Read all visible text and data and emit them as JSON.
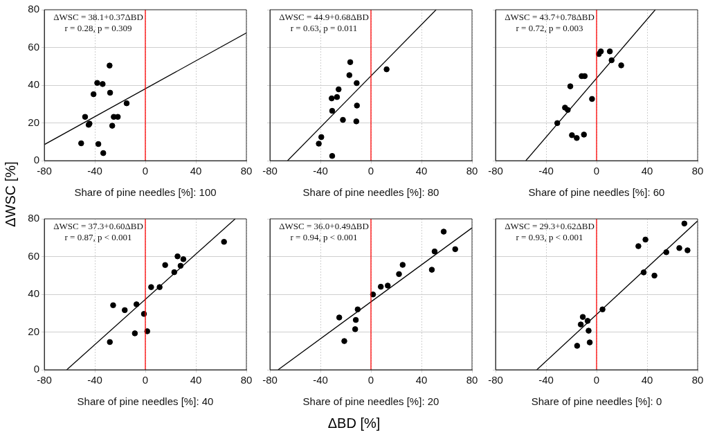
{
  "chart_data": [
    {
      "type": "scatter",
      "ylabel": "ΔWSC [%]",
      "xlabel": "Share of pine needles [%]: 100",
      "annotations": [
        "ΔWSC = 38.1+0.37ΔBD",
        "r = 0.28, p = 0.309"
      ],
      "xlim": [
        -80,
        80
      ],
      "ylim": [
        0,
        80
      ],
      "xticks": [
        -80,
        -40,
        0,
        40,
        80
      ],
      "yticks": [
        0,
        20,
        40,
        60,
        80
      ],
      "grid": true,
      "legend": false,
      "marker": "circle",
      "ref_lines": [
        {
          "axis": "x",
          "value": 0,
          "color": "#ff0000"
        }
      ],
      "series": [
        {
          "type": "scatter",
          "color": "#000000",
          "x": [
            -50.8,
            -37.2,
            -33.3,
            -44.9,
            -44.2,
            -47.7,
            -26.2,
            -25.0,
            -21.8,
            -14.8,
            -41.0,
            -27.9,
            -38.1,
            -33.8,
            -28.3
          ],
          "values": [
            9.2,
            8.8,
            4.0,
            19.0,
            19.6,
            23.2,
            18.5,
            23.2,
            23.2,
            30.4,
            35.2,
            36.0,
            41.2,
            40.6,
            50.4
          ]
        },
        {
          "type": "line",
          "marker": "none",
          "color": "#000000",
          "x": [
            -80,
            80
          ],
          "values": [
            8.5,
            67.7
          ]
        }
      ]
    },
    {
      "type": "scatter",
      "xlabel": "Share of pine needles [%]: 80",
      "annotations": [
        "ΔWSC = 44.9+0.68ΔBD",
        "r = 0.63, p = 0.011"
      ],
      "xlim": [
        -80,
        80
      ],
      "ylim": [
        0,
        80
      ],
      "xticks": [
        -80,
        -40,
        0,
        40,
        80
      ],
      "yticks": [
        0,
        20,
        40,
        60,
        80
      ],
      "tick_labels": "x",
      "grid": true,
      "legend": false,
      "marker": "circle",
      "ref_lines": [
        {
          "axis": "x",
          "value": 0,
          "color": "#ff0000"
        }
      ],
      "series": [
        {
          "type": "scatter",
          "color": "#000000",
          "x": [
            -30.7,
            -41.3,
            -39.3,
            -30.7,
            -31.1,
            -26.9,
            -25.6,
            -22.2,
            -11.6,
            -11.1,
            -11.3,
            -17.1,
            -16.4,
            12.4
          ],
          "values": [
            2.5,
            9.0,
            12.5,
            26.4,
            33.0,
            33.7,
            37.8,
            21.6,
            20.8,
            29.2,
            41.1,
            45.3,
            52.2,
            48.4
          ]
        },
        {
          "type": "line",
          "marker": "none",
          "color": "#000000",
          "x": [
            -66.0,
            51.6
          ],
          "values": [
            0,
            80
          ]
        }
      ]
    },
    {
      "type": "scatter",
      "xlabel": "Share of pine needles [%]: 60",
      "annotations": [
        "ΔWSC = 43.7+0.78ΔBD",
        "r = 0.72, p = 0.003"
      ],
      "xlim": [
        -80,
        80
      ],
      "ylim": [
        0,
        80
      ],
      "xticks": [
        -80,
        -40,
        0,
        40,
        80
      ],
      "yticks": [
        0,
        20,
        40,
        60,
        80
      ],
      "tick_labels": "x",
      "grid": true,
      "legend": false,
      "marker": "circle",
      "ref_lines": [
        {
          "axis": "x",
          "value": 0,
          "color": "#ff0000"
        }
      ],
      "series": [
        {
          "type": "scatter",
          "color": "#000000",
          "x": [
            -31.1,
            -19.5,
            -15.7,
            -10.0,
            -25.0,
            -22.8,
            -20.8,
            -11.8,
            -9.4,
            -3.6,
            1.8,
            3.4,
            10.5,
            11.9,
            19.5
          ],
          "values": [
            19.9,
            13.5,
            12.0,
            13.8,
            28.1,
            26.9,
            39.4,
            44.8,
            44.8,
            32.7,
            56.5,
            57.9,
            57.9,
            53.2,
            50.5
          ]
        },
        {
          "type": "line",
          "marker": "none",
          "color": "#000000",
          "x": [
            -56.0,
            46.5
          ],
          "values": [
            0,
            80
          ]
        }
      ]
    },
    {
      "type": "scatter",
      "xlabel": "Share of pine needles [%]: 40",
      "annotations": [
        "ΔWSC = 37.3+0.60ΔBD",
        "r = 0.87, p < 0.001"
      ],
      "xlim": [
        -80,
        80
      ],
      "ylim": [
        0,
        80
      ],
      "xticks": [
        -80,
        -40,
        0,
        40,
        80
      ],
      "yticks": [
        0,
        20,
        40,
        60,
        80
      ],
      "grid": true,
      "legend": false,
      "marker": "circle",
      "ref_lines": [
        {
          "axis": "x",
          "value": 0,
          "color": "#ff0000"
        }
      ],
      "series": [
        {
          "type": "scatter",
          "color": "#000000",
          "x": [
            -28.1,
            -25.5,
            -16.3,
            -8.3,
            -7.0,
            -1.1,
            1.5,
            4.6,
            11.3,
            15.7,
            22.9,
            25.5,
            27.9,
            30.1,
            62.3
          ],
          "values": [
            14.7,
            34.2,
            31.6,
            19.3,
            34.7,
            29.6,
            20.4,
            43.8,
            43.8,
            55.5,
            51.7,
            60.1,
            55.1,
            58.6,
            67.8
          ]
        },
        {
          "type": "line",
          "marker": "none",
          "color": "#000000",
          "x": [
            -62.2,
            71.2
          ],
          "values": [
            0,
            80
          ]
        }
      ]
    },
    {
      "type": "scatter",
      "xlabel": "Share of pine needles [%]: 20",
      "annotations": [
        "ΔWSC = 36.0+0.49ΔBD",
        "r = 0.94, p < 0.001",
        "ΔBD [%]"
      ],
      "xlim": [
        -80,
        80
      ],
      "ylim": [
        0,
        80
      ],
      "xticks": [
        -80,
        -40,
        0,
        40,
        80
      ],
      "yticks": [
        0,
        20,
        40,
        60,
        80
      ],
      "tick_labels": "x",
      "grid": true,
      "legend": false,
      "marker": "circle",
      "ref_lines": [
        {
          "axis": "x",
          "value": 0,
          "color": "#ff0000"
        }
      ],
      "series": [
        {
          "type": "scatter",
          "color": "#000000",
          "x": [
            -21.1,
            -25.1,
            -12.5,
            -12.0,
            -10.5,
            1.6,
            7.8,
            13.3,
            22.2,
            25.1,
            48.2,
            50.4,
            57.6,
            66.7
          ],
          "values": [
            15.2,
            27.7,
            21.5,
            26.4,
            32.0,
            39.9,
            44.0,
            44.6,
            50.7,
            55.6,
            53.0,
            62.7,
            73.2,
            63.9
          ]
        },
        {
          "type": "line",
          "marker": "none",
          "color": "#000000",
          "x": [
            -73.5,
            80
          ],
          "values": [
            0,
            75.2
          ]
        }
      ]
    },
    {
      "type": "scatter",
      "xlabel": "Share of pine needles [%]: 0",
      "annotations": [
        "ΔWSC = 29.3+0.62ΔBD",
        "r = 0.93, p < 0.001"
      ],
      "xlim": [
        -80,
        80
      ],
      "ylim": [
        0,
        80
      ],
      "xticks": [
        -80,
        -40,
        0,
        40,
        80
      ],
      "yticks": [
        0,
        20,
        40,
        60,
        80
      ],
      "tick_labels": "x",
      "grid": true,
      "legend": false,
      "marker": "circle",
      "ref_lines": [
        {
          "axis": "x",
          "value": 0,
          "color": "#ff0000"
        }
      ],
      "series": [
        {
          "type": "scatter",
          "color": "#000000",
          "x": [
            -15.4,
            -5.4,
            -6.3,
            -7.1,
            -12.5,
            -10.9,
            4.7,
            37.3,
            45.8,
            33.1,
            38.7,
            55.2,
            65.5,
            69.5,
            72.0
          ],
          "values": [
            12.7,
            14.5,
            20.7,
            25.9,
            24.0,
            28.0,
            32.0,
            51.6,
            49.9,
            65.5,
            69.0,
            62.3,
            64.5,
            77.5,
            63.3
          ]
        },
        {
          "type": "line",
          "marker": "none",
          "color": "#000000",
          "x": [
            -47.3,
            80
          ],
          "values": [
            0,
            78.9
          ]
        }
      ]
    }
  ]
}
